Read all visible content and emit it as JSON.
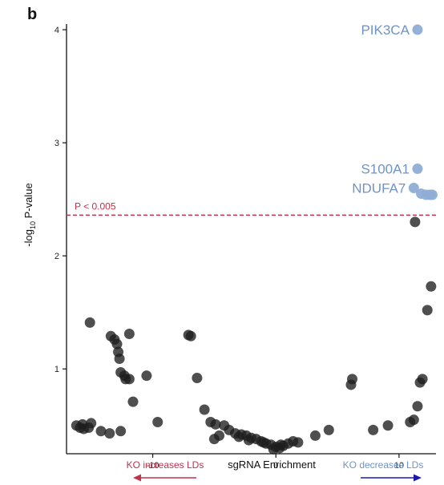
{
  "panel_letter": "b",
  "colors": {
    "background": "#ffffff",
    "axis": "#111111",
    "point_default": "#1e1e1e",
    "point_highlight": "#8fadd6",
    "label_highlight": "#7093c7",
    "threshold": "#c0324d",
    "arrow_left": "#c0324d",
    "arrow_right": "#1a1aa8",
    "arrow_right_text": "#7093c7"
  },
  "chart_data": {
    "type": "scatter",
    "title": "",
    "xlabel": "sgRNA Enrichment",
    "ylabel_main": "-log",
    "ylabel_sub": "10",
    "ylabel_tail": " P-value",
    "xlim": [
      -17,
      13
    ],
    "ylim": [
      0.25,
      4.05
    ],
    "xticks": [
      -10,
      0,
      10
    ],
    "yticks": [
      1,
      2,
      3,
      4
    ],
    "grid": false,
    "threshold": {
      "y": 2.36,
      "label": "P < 0.005"
    },
    "arrows": {
      "left_label": "KO increases LDs",
      "right_label": "KO decreases LDs"
    },
    "labels": [
      {
        "text": "PIK3CA",
        "x": 11.5,
        "y": 4.0
      },
      {
        "text": "S100A1",
        "x": 11.5,
        "y": 2.77
      },
      {
        "text": "NDUFA7",
        "x": 11.2,
        "y": 2.6
      }
    ],
    "series": [
      {
        "highlight": true,
        "points": [
          [
            11.5,
            4.0
          ],
          [
            11.5,
            2.77
          ],
          [
            11.2,
            2.6
          ],
          [
            11.8,
            2.55
          ],
          [
            12.2,
            2.54
          ],
          [
            12.5,
            2.54
          ],
          [
            12.7,
            2.54
          ]
        ]
      },
      {
        "highlight": false,
        "points": [
          [
            11.3,
            2.3
          ],
          [
            12.6,
            1.73
          ],
          [
            12.3,
            1.52
          ],
          [
            11.9,
            0.91
          ],
          [
            11.7,
            0.88
          ],
          [
            11.5,
            0.67
          ],
          [
            11.2,
            0.55
          ],
          [
            10.9,
            0.53
          ],
          [
            9.1,
            0.5
          ],
          [
            7.9,
            0.46
          ],
          [
            6.2,
            0.91
          ],
          [
            6.1,
            0.86
          ],
          [
            4.3,
            0.46
          ],
          [
            3.2,
            0.41
          ],
          [
            -15.7,
            0.51
          ],
          [
            -16.2,
            0.5
          ],
          [
            -15.9,
            0.48
          ],
          [
            -15.6,
            0.47
          ],
          [
            -15.2,
            0.48
          ],
          [
            -15.0,
            0.52
          ],
          [
            -14.2,
            0.45
          ],
          [
            -13.5,
            0.43
          ],
          [
            -12.6,
            0.45
          ],
          [
            -15.1,
            1.41
          ],
          [
            -13.4,
            1.29
          ],
          [
            -13.1,
            1.26
          ],
          [
            -12.9,
            1.22
          ],
          [
            -12.8,
            1.15
          ],
          [
            -12.7,
            1.09
          ],
          [
            -12.6,
            0.97
          ],
          [
            -12.3,
            0.94
          ],
          [
            -12.2,
            0.91
          ],
          [
            -11.9,
            0.91
          ],
          [
            -11.9,
            1.31
          ],
          [
            -11.6,
            0.71
          ],
          [
            -10.5,
            0.94
          ],
          [
            -9.6,
            0.53
          ],
          [
            -7.1,
            1.3
          ],
          [
            -6.9,
            1.29
          ],
          [
            -6.4,
            0.92
          ],
          [
            -5.8,
            0.64
          ],
          [
            -5.3,
            0.53
          ],
          [
            -4.9,
            0.51
          ],
          [
            -4.6,
            0.41
          ],
          [
            -5.0,
            0.38
          ],
          [
            -4.2,
            0.5
          ],
          [
            -3.8,
            0.46
          ],
          [
            -3.3,
            0.43
          ],
          [
            -2.8,
            0.42
          ],
          [
            -2.4,
            0.41
          ],
          [
            -2.0,
            0.39
          ],
          [
            -1.6,
            0.38
          ],
          [
            -1.2,
            0.36
          ],
          [
            -0.8,
            0.34
          ],
          [
            -0.4,
            0.33
          ],
          [
            0.0,
            0.31
          ],
          [
            0.3,
            0.3
          ],
          [
            0.6,
            0.32
          ],
          [
            1.0,
            0.34
          ],
          [
            1.4,
            0.36
          ],
          [
            1.8,
            0.35
          ],
          [
            -3.0,
            0.4
          ],
          [
            -2.2,
            0.37
          ],
          [
            -1.0,
            0.35
          ],
          [
            -0.2,
            0.29
          ],
          [
            0.4,
            0.33
          ]
        ]
      }
    ]
  }
}
